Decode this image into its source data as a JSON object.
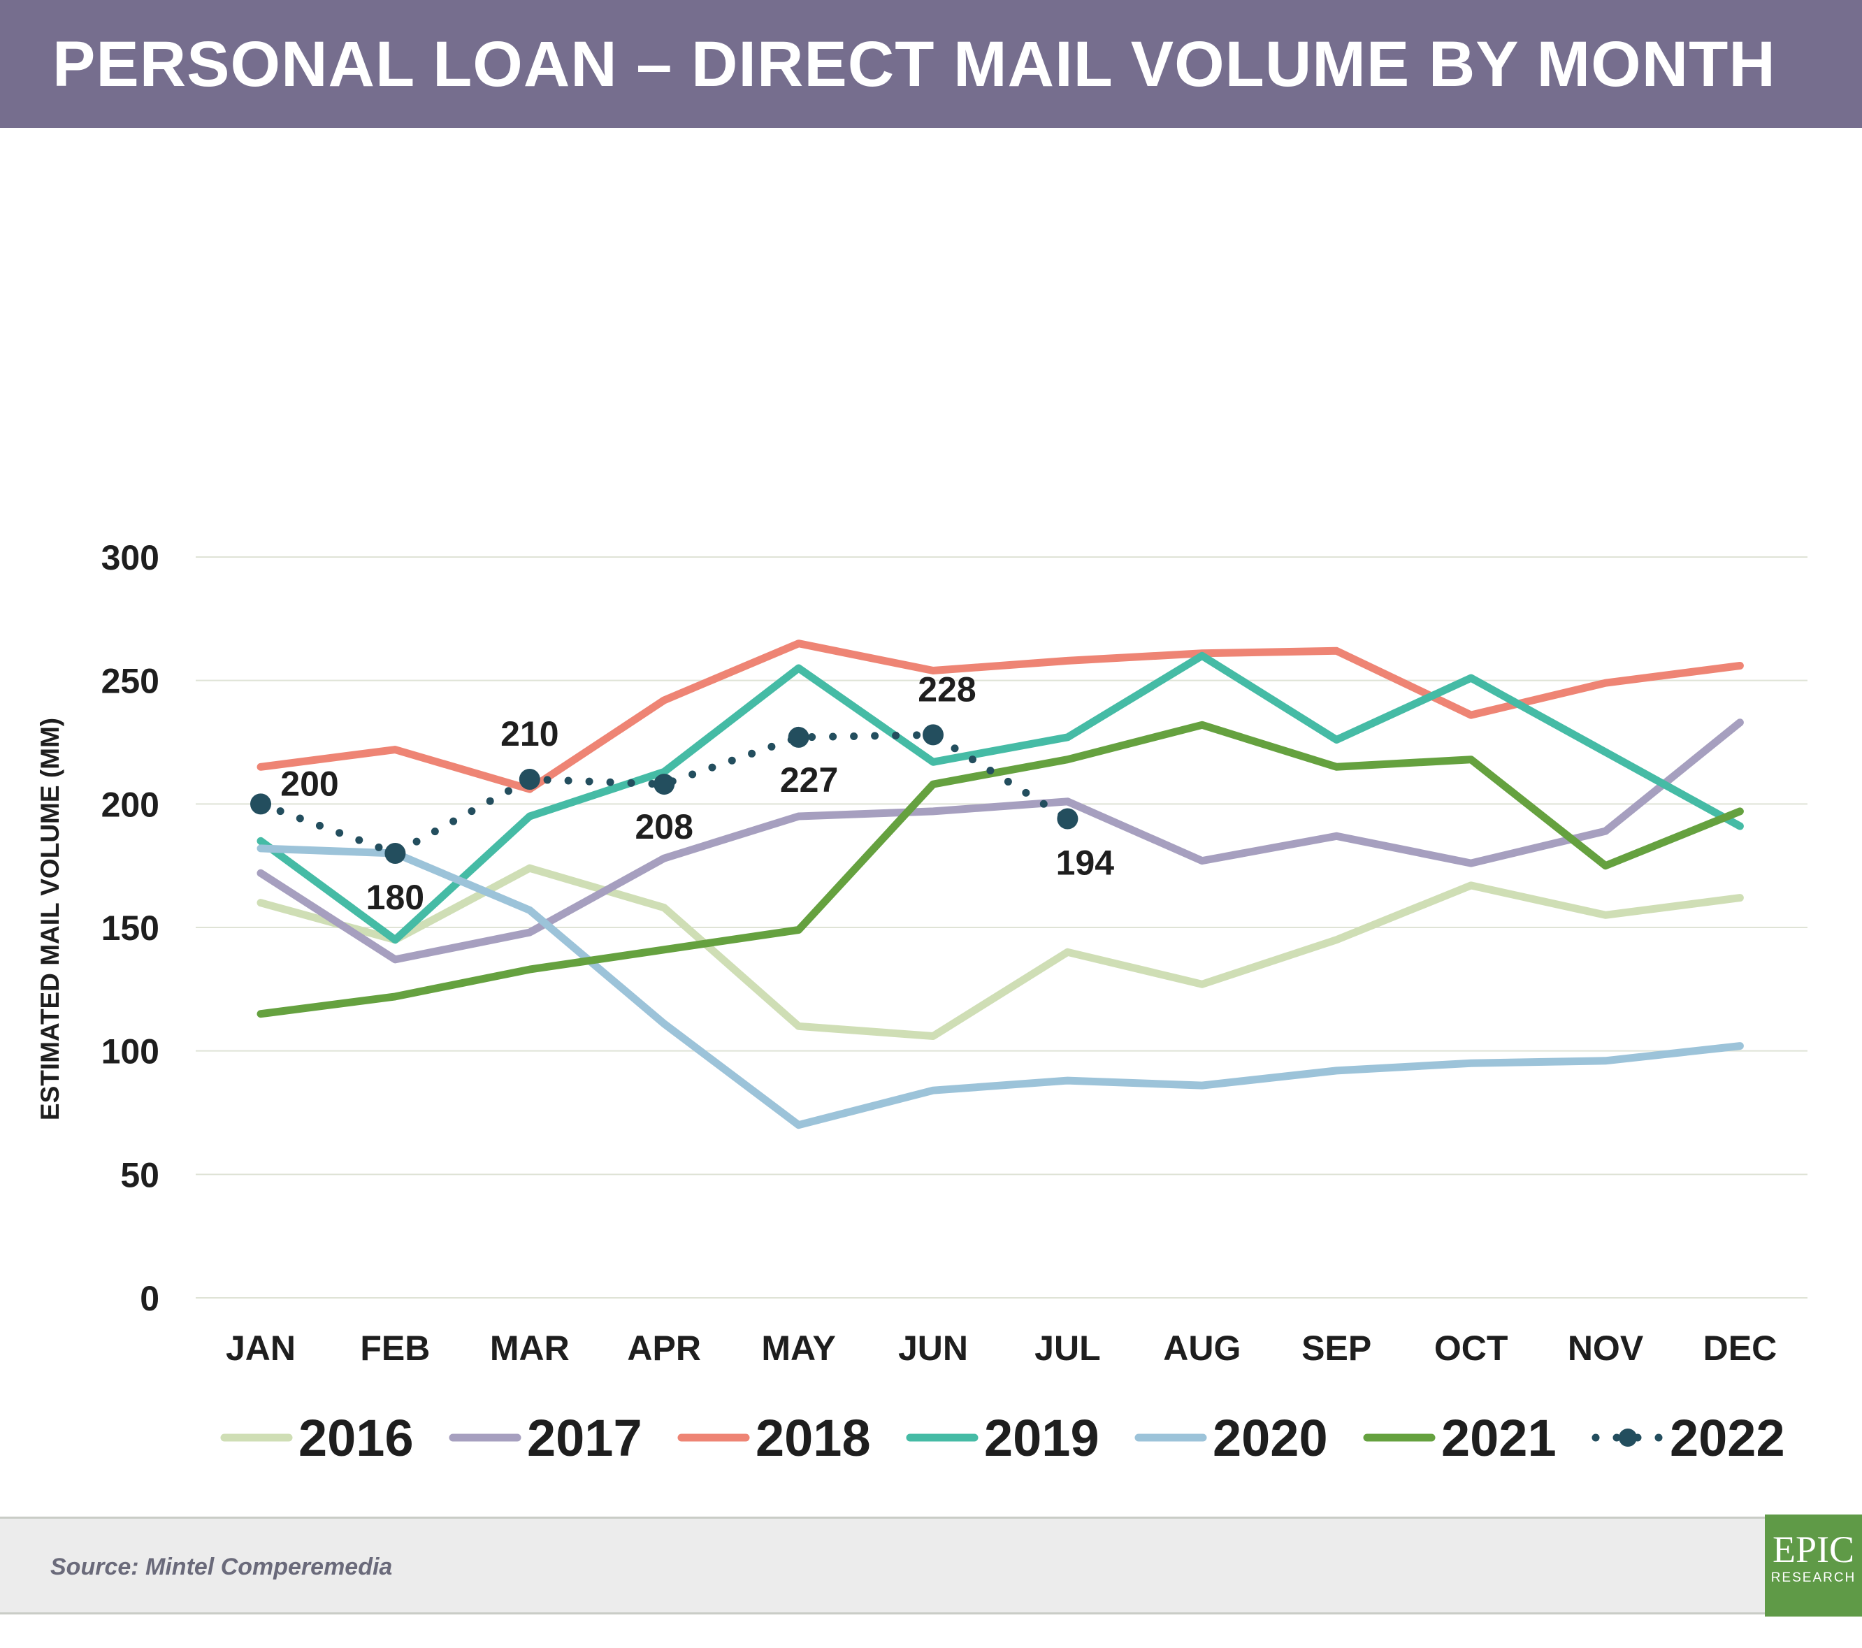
{
  "title": "PERSONAL LOAN – DIRECT MAIL VOLUME BY MONTH",
  "source": "Source: Mintel Comperemedia",
  "logo": {
    "line1": "EPIC",
    "line2": "RESEARCH"
  },
  "chart_data": {
    "type": "line",
    "title": "PERSONAL LOAN – DIRECT MAIL VOLUME BY MONTH",
    "xlabel": "",
    "ylabel": "ESTIMATED MAIL VOLUME (MM)",
    "ylim": [
      0,
      300
    ],
    "yticks": [
      0,
      50,
      100,
      150,
      200,
      250,
      300
    ],
    "grid": true,
    "legend_position": "bottom",
    "categories": [
      "JAN",
      "FEB",
      "MAR",
      "APR",
      "MAY",
      "JUN",
      "JUL",
      "AUG",
      "SEP",
      "OCT",
      "NOV",
      "DEC"
    ],
    "series": [
      {
        "name": "2016",
        "color": "#cfdeb5",
        "style": "solid",
        "values": [
          160,
          145,
          174,
          158,
          110,
          106,
          140,
          127,
          145,
          167,
          155,
          162
        ]
      },
      {
        "name": "2017",
        "color": "#a69fbf",
        "style": "solid",
        "values": [
          172,
          137,
          148,
          178,
          195,
          197,
          201,
          177,
          187,
          176,
          189,
          233
        ]
      },
      {
        "name": "2018",
        "color": "#ee8474",
        "style": "solid",
        "values": [
          215,
          222,
          206,
          242,
          265,
          254,
          258,
          261,
          262,
          236,
          249,
          256
        ]
      },
      {
        "name": "2019",
        "color": "#45bba5",
        "style": "solid",
        "values": [
          185,
          145,
          195,
          213,
          255,
          217,
          227,
          260,
          226,
          251,
          221,
          191
        ]
      },
      {
        "name": "2020",
        "color": "#9cc3d9",
        "style": "solid",
        "values": [
          182,
          180,
          157,
          111,
          70,
          84,
          88,
          86,
          92,
          95,
          96,
          102
        ]
      },
      {
        "name": "2021",
        "color": "#65a13f",
        "style": "solid",
        "values": [
          115,
          122,
          133,
          141,
          149,
          208,
          218,
          232,
          215,
          218,
          175,
          197
        ]
      },
      {
        "name": "2022",
        "color": "#234e5e",
        "style": "dotted",
        "values": [
          200,
          180,
          210,
          208,
          227,
          228,
          194,
          null,
          null,
          null,
          null,
          null
        ],
        "data_labels": [
          "200",
          "180",
          "210",
          "208",
          "227",
          "228",
          "194"
        ]
      }
    ]
  }
}
